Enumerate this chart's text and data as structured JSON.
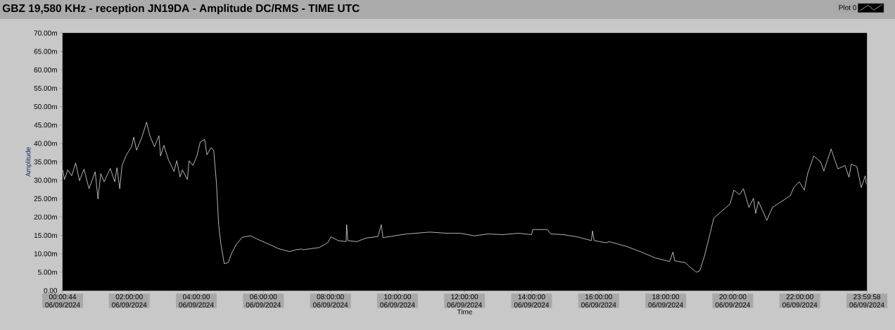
{
  "chart_data": {
    "type": "line",
    "title": "GBZ  19,580 KHz - reception JN19DA -  Amplitude DC/RMS   - TIME UTC",
    "xlabel": "Time",
    "ylabel": "Amplitude",
    "legend": "top right",
    "xlim": [
      "2024-09-06T00:00:44",
      "2024-09-06T23:59:58"
    ],
    "ylim": [
      0,
      70
    ],
    "xticks": [
      {
        "value": "2024-09-06T00:00:44",
        "label": "00:00:44 06/09/2024"
      },
      {
        "value": "2024-09-06T02:00",
        "label": "02:00:00 06/09/2024"
      },
      {
        "value": "2024-09-06T04:00",
        "label": "04:00:00 06/09/2024"
      },
      {
        "value": "2024-09-06T06:00",
        "label": "06:00:00 06/09/2024"
      },
      {
        "value": "2024-09-06T08:00",
        "label": "08:00:00 06/09/2024"
      },
      {
        "value": "2024-09-06T10:00",
        "label": "10:00:00 06/09/2024"
      },
      {
        "value": "2024-09-06T12:00",
        "label": "12:00:00 06/09/2024"
      },
      {
        "value": "2024-09-06T14:00",
        "label": "14:00:00 06/09/2024"
      },
      {
        "value": "2024-09-06T16:00",
        "label": "16:00:00 06/09/2024"
      },
      {
        "value": "2024-09-06T18:00",
        "label": "18:00:00 06/09/2024"
      },
      {
        "value": "2024-09-06T20:00",
        "label": "20:00:00 06/09/2024"
      },
      {
        "value": "2024-09-06T22:00",
        "label": "22:00:00 06/09/2024"
      },
      {
        "value": "2024-09-06T23:59:58",
        "label": "23:59:58 06/09/2024"
      }
    ],
    "yticks": [
      {
        "value": 0,
        "label": "0.00"
      },
      {
        "value": 5,
        "label": "5.00m"
      },
      {
        "value": 10,
        "label": "10.00m"
      },
      {
        "value": 15,
        "label": "15.00m"
      },
      {
        "value": 20,
        "label": "20.00m"
      },
      {
        "value": 25,
        "label": "25.00m"
      },
      {
        "value": 30,
        "label": "30.00m"
      },
      {
        "value": 35,
        "label": "35.00m"
      },
      {
        "value": 40,
        "label": "40.00m"
      },
      {
        "value": 45,
        "label": "45.00m"
      },
      {
        "value": 50,
        "label": "50.00m"
      },
      {
        "value": 55,
        "label": "55.00m"
      },
      {
        "value": 60,
        "label": "60.00m"
      },
      {
        "value": 65,
        "label": "65.00m"
      },
      {
        "value": 70,
        "label": "70.00m"
      }
    ],
    "series": [
      {
        "name": "Plot 0",
        "color": "#ffffff",
        "x": [
          "2024-09-06T00:01",
          "2024-09-06T00:04",
          "2024-09-06T00:10",
          "2024-09-06T00:17",
          "2024-09-06T00:24",
          "2024-09-06T00:31",
          "2024-09-06T00:39",
          "2024-09-06T00:48",
          "2024-09-06T00:59",
          "2024-09-06T01:04",
          "2024-09-06T01:09",
          "2024-09-06T01:15",
          "2024-09-06T01:26",
          "2024-09-06T01:34",
          "2024-09-06T01:38",
          "2024-09-06T01:43",
          "2024-09-06T01:47",
          "2024-09-06T01:55",
          "2024-09-06T02:04",
          "2024-09-06T02:08",
          "2024-09-06T02:13",
          "2024-09-06T02:22",
          "2024-09-06T02:31",
          "2024-09-06T02:37",
          "2024-09-06T02:45",
          "2024-09-06T02:53",
          "2024-09-06T02:56",
          "2024-09-06T03:02",
          "2024-09-06T03:10",
          "2024-09-06T03:20",
          "2024-09-06T03:25",
          "2024-09-06T03:31",
          "2024-09-06T03:35",
          "2024-09-06T03:44",
          "2024-09-06T03:47",
          "2024-09-06T03:54",
          "2024-09-06T04:01",
          "2024-09-06T04:07",
          "2024-09-06T04:15",
          "2024-09-06T04:19",
          "2024-09-06T04:26",
          "2024-09-06T04:31",
          "2024-09-06T04:36",
          "2024-09-06T04:40",
          "2024-09-06T04:44",
          "2024-09-06T04:50",
          "2024-09-06T04:57",
          "2024-09-06T05:03",
          "2024-09-06T05:11",
          "2024-09-06T05:22",
          "2024-09-06T05:37",
          "2024-09-06T05:49",
          "2024-09-06T06:10",
          "2024-09-06T06:27",
          "2024-09-06T06:47",
          "2024-09-06T06:58",
          "2024-09-06T07:08",
          "2024-09-06T07:11",
          "2024-09-06T07:40",
          "2024-09-06T07:55",
          "2024-09-06T08:01",
          "2024-09-06T08:14",
          "2024-09-06T08:28",
          "2024-09-06T08:29",
          "2024-09-06T08:31",
          "2024-09-06T08:47",
          "2024-09-06T09:04",
          "2024-09-06T09:25",
          "2024-09-06T09:31",
          "2024-09-06T09:34",
          "2024-09-06T09:55",
          "2024-09-06T10:16",
          "2024-09-06T10:58",
          "2024-09-06T11:27",
          "2024-09-06T11:52",
          "2024-09-06T12:17",
          "2024-09-06T12:43",
          "2024-09-06T13:08",
          "2024-09-06T13:37",
          "2024-09-06T14:00",
          "2024-09-06T14:02",
          "2024-09-06T14:28",
          "2024-09-06T14:34",
          "2024-09-06T14:57",
          "2024-09-06T15:22",
          "2024-09-06T15:47",
          "2024-09-06T15:49",
          "2024-09-06T15:52",
          "2024-09-06T16:13",
          "2024-09-06T16:19",
          "2024-09-06T16:50",
          "2024-09-06T17:16",
          "2024-09-06T17:41",
          "2024-09-06T18:07",
          "2024-09-06T18:13",
          "2024-09-06T18:16",
          "2024-09-06T18:35",
          "2024-09-06T18:44",
          "2024-09-06T18:55",
          "2024-09-06T19:01",
          "2024-09-06T19:09",
          "2024-09-06T19:17",
          "2024-09-06T19:26",
          "2024-09-06T19:38",
          "2024-09-06T19:55",
          "2024-09-06T20:02",
          "2024-09-06T20:12",
          "2024-09-06T20:19",
          "2024-09-06T20:29",
          "2024-09-06T20:37",
          "2024-09-06T20:41",
          "2024-09-06T20:46",
          "2024-09-06T21:01",
          "2024-09-06T21:11",
          "2024-09-06T21:23",
          "2024-09-06T21:43",
          "2024-09-06T21:49",
          "2024-09-06T21:59",
          "2024-09-06T22:08",
          "2024-09-06T22:14",
          "2024-09-06T22:25",
          "2024-09-06T22:37",
          "2024-09-06T22:43",
          "2024-09-06T22:56",
          "2024-09-06T23:08",
          "2024-09-06T23:21",
          "2024-09-06T23:28",
          "2024-09-06T23:32",
          "2024-09-06T23:42",
          "2024-09-06T23:50",
          "2024-09-06T23:57",
          "2024-09-06T23:59"
        ],
        "values": [
          32.8,
          30.2,
          32.8,
          31.2,
          34.7,
          29.9,
          33.0,
          27.7,
          32.3,
          24.9,
          31.8,
          29.6,
          33.2,
          29.6,
          33.4,
          27.7,
          34.0,
          36.9,
          39.1,
          41.7,
          38.2,
          41.4,
          45.8,
          42.0,
          39.1,
          42.1,
          36.6,
          39.5,
          35.6,
          32.4,
          35.3,
          30.9,
          32.8,
          30.2,
          35.3,
          34.0,
          36.6,
          40.4,
          41.1,
          36.9,
          38.8,
          38.2,
          29.3,
          17.8,
          12.7,
          7.3,
          7.6,
          10.1,
          12.4,
          14.5,
          14.9,
          14.0,
          12.6,
          11.4,
          10.6,
          11.1,
          11.3,
          11.1,
          11.7,
          13.0,
          14.6,
          13.6,
          13.3,
          17.9,
          13.6,
          13.3,
          14.3,
          14.7,
          17.9,
          14.4,
          14.9,
          15.4,
          15.9,
          15.6,
          15.6,
          14.9,
          15.4,
          15.2,
          15.6,
          15.2,
          16.6,
          16.6,
          15.4,
          15.2,
          14.6,
          13.6,
          16.2,
          13.6,
          13.0,
          13.3,
          12.0,
          10.5,
          8.9,
          7.9,
          10.5,
          8.1,
          7.6,
          6.3,
          5.0,
          5.4,
          9.2,
          14.0,
          19.7,
          21.3,
          23.5,
          27.3,
          26.1,
          27.7,
          22.6,
          25.1,
          21.0,
          24.2,
          19.1,
          22.6,
          23.8,
          25.8,
          28.0,
          29.6,
          27.3,
          31.8,
          36.6,
          35.0,
          32.5,
          38.5,
          33.1,
          34.0,
          30.8,
          34.4,
          33.7,
          28.0,
          31.2,
          28.9
        ]
      }
    ]
  }
}
